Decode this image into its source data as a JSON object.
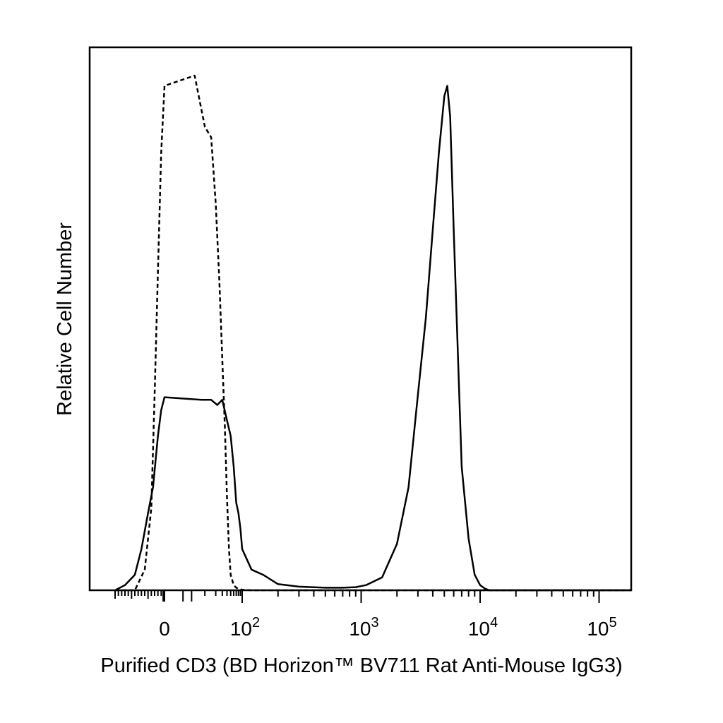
{
  "chart_data": {
    "type": "line",
    "title": "",
    "xlabel": "Purified CD3 (BD Horizon™ BV711 Rat Anti-Mouse IgG3)",
    "ylabel": "Relative Cell Number",
    "x_scale": "biexponential",
    "xlim": [
      -150,
      250000
    ],
    "ylim": [
      0,
      100
    ],
    "grid": false,
    "legend": "none",
    "x_ticks": [
      {
        "value": 0,
        "base": "0",
        "exp": ""
      },
      {
        "value": 100,
        "base": "10",
        "exp": "2"
      },
      {
        "value": 1000,
        "base": "10",
        "exp": "3"
      },
      {
        "value": 10000,
        "base": "10",
        "exp": "4"
      },
      {
        "value": 100000,
        "base": "10",
        "exp": "5"
      }
    ],
    "series": [
      {
        "style": "solid",
        "color": "#000000",
        "x": [
          -150,
          -120,
          -90,
          -70,
          -50,
          -35,
          -20,
          -10,
          0,
          8,
          15,
          22,
          30,
          40,
          50,
          60,
          70,
          80,
          90,
          100,
          120,
          150,
          200,
          300,
          500,
          700,
          900,
          1100,
          1500,
          2000,
          2500,
          3000,
          3500,
          4000,
          4500,
          5000,
          5300,
          5600,
          6000,
          6500,
          7000,
          8000,
          9000,
          10000,
          11000,
          12000,
          15000,
          30000,
          100000,
          250000
        ],
        "y": [
          0,
          1,
          3,
          8,
          15,
          20,
          30,
          35,
          37.5,
          37,
          37,
          36,
          37,
          33,
          30,
          24,
          17,
          15,
          12,
          8,
          4,
          3,
          1.2,
          0.7,
          0.5,
          0.5,
          0.6,
          1,
          2.5,
          9,
          20,
          38,
          53,
          70,
          85,
          96,
          98,
          92,
          70,
          46,
          24,
          10,
          3,
          1,
          0.3,
          0,
          0,
          0,
          0,
          0
        ]
      },
      {
        "style": "dashed",
        "color": "#000000",
        "x": [
          -150,
          -90,
          -60,
          -40,
          -30,
          -20,
          -10,
          0,
          5,
          10,
          15,
          20,
          25,
          30,
          35,
          40,
          45,
          50,
          60,
          70,
          80,
          90,
          100,
          120,
          150,
          200,
          300,
          500,
          1000,
          5000,
          250000
        ],
        "y": [
          0,
          0,
          4,
          16,
          38,
          62,
          85,
          98,
          100,
          90,
          88,
          75,
          60,
          45,
          32,
          18,
          8,
          3,
          1,
          0.5,
          0.3,
          0.2,
          0.1,
          0,
          0,
          0,
          0,
          0,
          0,
          0,
          0
        ]
      }
    ]
  }
}
